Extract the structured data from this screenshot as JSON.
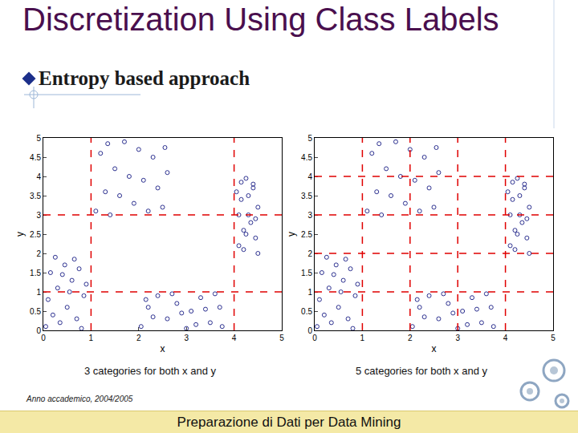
{
  "slide": {
    "title": "Discretization Using Class Labels",
    "bullet": "Entropy based approach",
    "footnote": "Anno accademico, 2004/2005",
    "footer": "Preparazione di Dati per Data Mining"
  },
  "chart_data": [
    {
      "type": "scatter",
      "subtitle": "3 categories for both x and y",
      "xlabel": "x",
      "ylabel": "y",
      "color": "#2b2f8f",
      "marker": "circle-open",
      "x": [
        0.05,
        0.2,
        0.35,
        0.1,
        0.5,
        0.7,
        0.85,
        0.3,
        0.6,
        0.15,
        0.45,
        0.75,
        0.9,
        0.25,
        0.55,
        0.8,
        0.4,
        0.65,
        1.1,
        1.3,
        1.5,
        1.2,
        1.7,
        1.9,
        2.1,
        2.3,
        2.5,
        2.6,
        1.4,
        1.8,
        2.0,
        2.4,
        1.6,
        2.2,
        1.35,
        2.55,
        2.05,
        2.2,
        2.4,
        2.6,
        2.8,
        3.0,
        3.1,
        3.3,
        3.5,
        3.7,
        2.3,
        2.7,
        2.9,
        3.2,
        3.4,
        3.6,
        2.15,
        3.75,
        4.1,
        4.2,
        4.3,
        4.15,
        4.4,
        4.45,
        4.25,
        4.35,
        4.05,
        4.5,
        4.2,
        4.3,
        4.1,
        4.45,
        4.4,
        4.25,
        4.5,
        4.15
      ],
      "y": [
        0.1,
        0.4,
        0.2,
        0.8,
        0.6,
        0.3,
        0.9,
        1.1,
        1.3,
        1.5,
        1.7,
        1.6,
        1.2,
        1.9,
        1.0,
        0.05,
        1.45,
        1.85,
        3.1,
        3.6,
        4.2,
        4.6,
        4.9,
        3.3,
        3.9,
        4.5,
        3.2,
        4.1,
        3.0,
        4.0,
        4.7,
        3.7,
        3.5,
        3.1,
        4.85,
        4.75,
        0.1,
        0.6,
        0.9,
        0.3,
        0.7,
        0.05,
        0.5,
        0.85,
        0.2,
        0.6,
        0.35,
        0.95,
        0.45,
        0.15,
        0.55,
        0.95,
        0.8,
        0.1,
        2.2,
        2.6,
        3.0,
        3.4,
        3.8,
        2.4,
        3.95,
        2.8,
        3.6,
        3.2,
        2.1,
        3.5,
        3.0,
        2.9,
        3.7,
        2.5,
        2.0,
        3.85
      ],
      "xlim": [
        0,
        5
      ],
      "xticks": [
        0,
        1,
        2,
        3,
        4,
        5
      ],
      "ylim": [
        0,
        5
      ],
      "yticks": [
        0,
        0.5,
        1,
        1.5,
        2,
        2.5,
        3,
        3.5,
        4,
        4.5,
        5
      ],
      "grid": false,
      "splits": {
        "x": [
          1,
          4
        ],
        "y": [
          1,
          3
        ],
        "color": "#e00000",
        "line_style": "dash"
      }
    },
    {
      "type": "scatter",
      "subtitle": "5 categories for both x and y",
      "xlabel": "x",
      "ylabel": "y",
      "color": "#2b2f8f",
      "marker": "circle-open",
      "x": [
        0.05,
        0.2,
        0.35,
        0.1,
        0.5,
        0.7,
        0.85,
        0.3,
        0.6,
        0.15,
        0.45,
        0.75,
        0.9,
        0.25,
        0.55,
        0.8,
        0.4,
        0.65,
        1.1,
        1.3,
        1.5,
        1.2,
        1.7,
        1.9,
        2.1,
        2.3,
        2.5,
        2.6,
        1.4,
        1.8,
        2.0,
        2.4,
        1.6,
        2.2,
        1.35,
        2.55,
        2.05,
        2.2,
        2.4,
        2.6,
        2.8,
        3.0,
        3.1,
        3.3,
        3.5,
        3.7,
        2.3,
        2.7,
        2.9,
        3.2,
        3.4,
        3.6,
        2.15,
        3.75,
        4.1,
        4.2,
        4.3,
        4.15,
        4.4,
        4.45,
        4.25,
        4.35,
        4.05,
        4.5,
        4.2,
        4.3,
        4.1,
        4.45,
        4.4,
        4.25,
        4.5,
        4.15
      ],
      "y": [
        0.1,
        0.4,
        0.2,
        0.8,
        0.6,
        0.3,
        0.9,
        1.1,
        1.3,
        1.5,
        1.7,
        1.6,
        1.2,
        1.9,
        1.0,
        0.05,
        1.45,
        1.85,
        3.1,
        3.6,
        4.2,
        4.6,
        4.9,
        3.3,
        3.9,
        4.5,
        3.2,
        4.1,
        3.0,
        4.0,
        4.7,
        3.7,
        3.5,
        3.1,
        4.85,
        4.75,
        0.1,
        0.6,
        0.9,
        0.3,
        0.7,
        0.05,
        0.5,
        0.85,
        0.2,
        0.6,
        0.35,
        0.95,
        0.45,
        0.15,
        0.55,
        0.95,
        0.8,
        0.1,
        2.2,
        2.6,
        3.0,
        3.4,
        3.8,
        2.4,
        3.95,
        2.8,
        3.6,
        3.2,
        2.1,
        3.5,
        3.0,
        2.9,
        3.7,
        2.5,
        2.0,
        3.85
      ],
      "xlim": [
        0,
        5
      ],
      "xticks": [
        0,
        1,
        2,
        3,
        4,
        5
      ],
      "ylim": [
        0,
        5
      ],
      "yticks": [
        0,
        0.5,
        1,
        1.5,
        2,
        2.5,
        3,
        3.5,
        4,
        4.5,
        5
      ],
      "grid": false,
      "splits": {
        "x": [
          1,
          2,
          3,
          4
        ],
        "y": [
          1,
          2,
          3,
          4
        ],
        "color": "#e00000",
        "line_style": "dash"
      }
    }
  ]
}
